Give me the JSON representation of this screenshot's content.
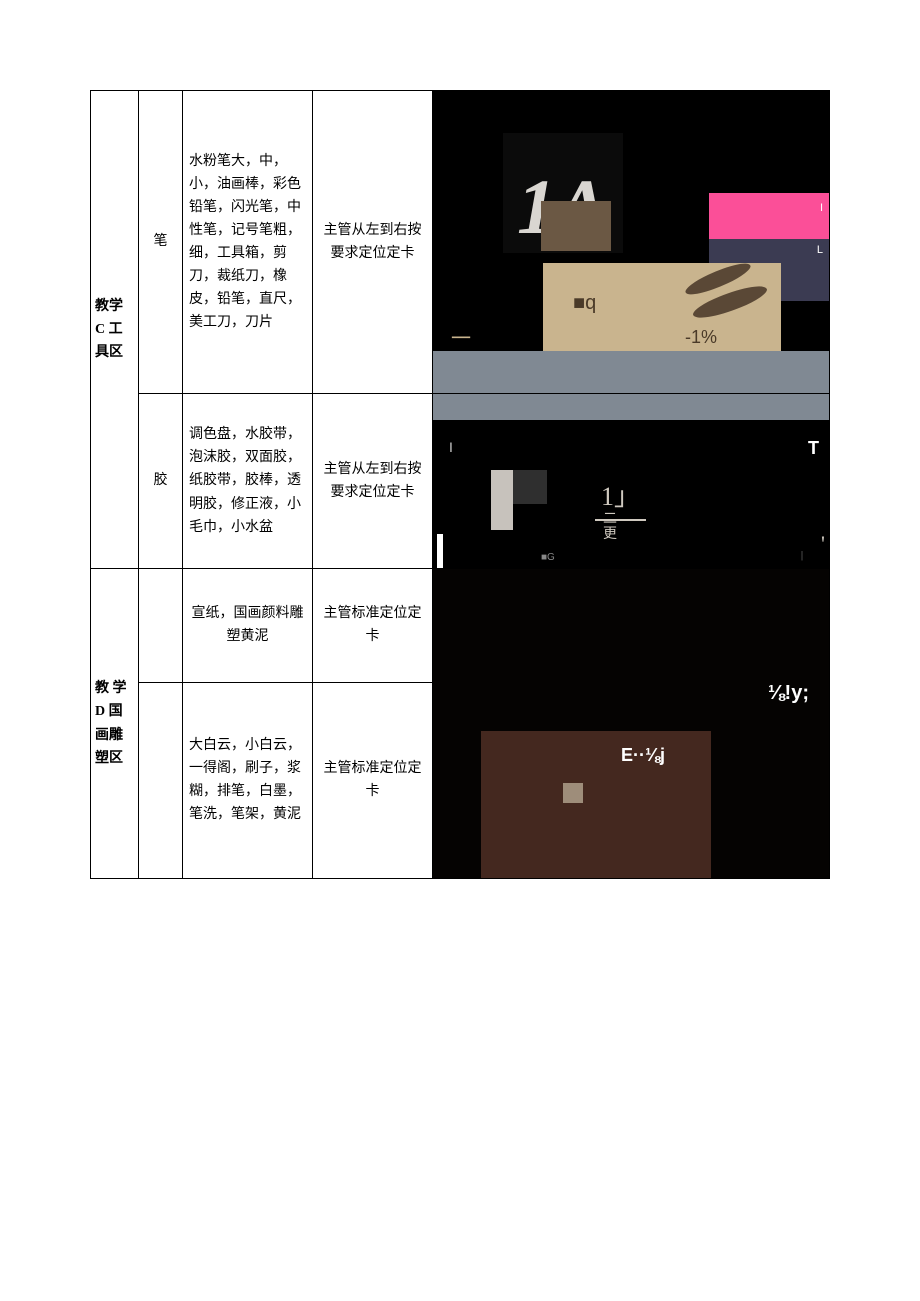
{
  "table": {
    "border_color": "#000000",
    "font_family": "SimSun",
    "font_size_pt": 10.5
  },
  "sections": {
    "c": {
      "label": "教学 C 工具区",
      "rows": [
        {
          "category": "笔",
          "items": "水粉笔大，中，小，油画棒，彩色铅笔，闪光笔，中性笔，记号笔粗，细，工具箱，剪刀，裁纸刀，橡皮，铅笔，直尺，美工刀，刀片",
          "note": "主管从左到右按要求定位定卡"
        },
        {
          "category": "胶",
          "items": "调色盘，水胶带，泡沫胶，双面胶，纸胶带，胶棒，透明胶，修正液，小毛巾，小水盆",
          "note": "主管从左到右按要求定位定卡"
        }
      ]
    },
    "d": {
      "label": "教 学 D 国画雕塑区",
      "rows": [
        {
          "category": "",
          "items": "宣纸，国画颜料雕塑黄泥",
          "note": "主管标准定位定卡"
        },
        {
          "category": "",
          "items": "大白云，小白云，一得阁，刷子，浆糊，排笔，白墨，笔洗，笔架，黄泥",
          "note": "主管标准定位定卡"
        }
      ]
    }
  },
  "photos": {
    "p1": {
      "background": "#000000",
      "big_text": "1A",
      "sub_text": "1",
      "q_text": "■q",
      "pct_text": "-1%",
      "i_text": "I",
      "l_text": "L",
      "dash": "一",
      "colors": {
        "pink": "#fb4f98",
        "navy": "#3b3b52",
        "tan": "#c9b48e",
        "brown": "#6b5844",
        "grey": "#808993"
      }
    },
    "p2": {
      "t_text": "T",
      "i_text": "I",
      "one_text": "1」",
      "sub_lines": "二\n更",
      "g_text": "■G",
      "pipe": "|",
      "comma": "'",
      "colors": {
        "cream": "#c7c2bc",
        "grey": "#808993"
      }
    },
    "p3": {
      "y_text": "⅛!y;",
      "e_text": "E··⅛j",
      "colors": {
        "brown": "#44281f",
        "tan_sq": "#9e8d7a"
      }
    }
  }
}
